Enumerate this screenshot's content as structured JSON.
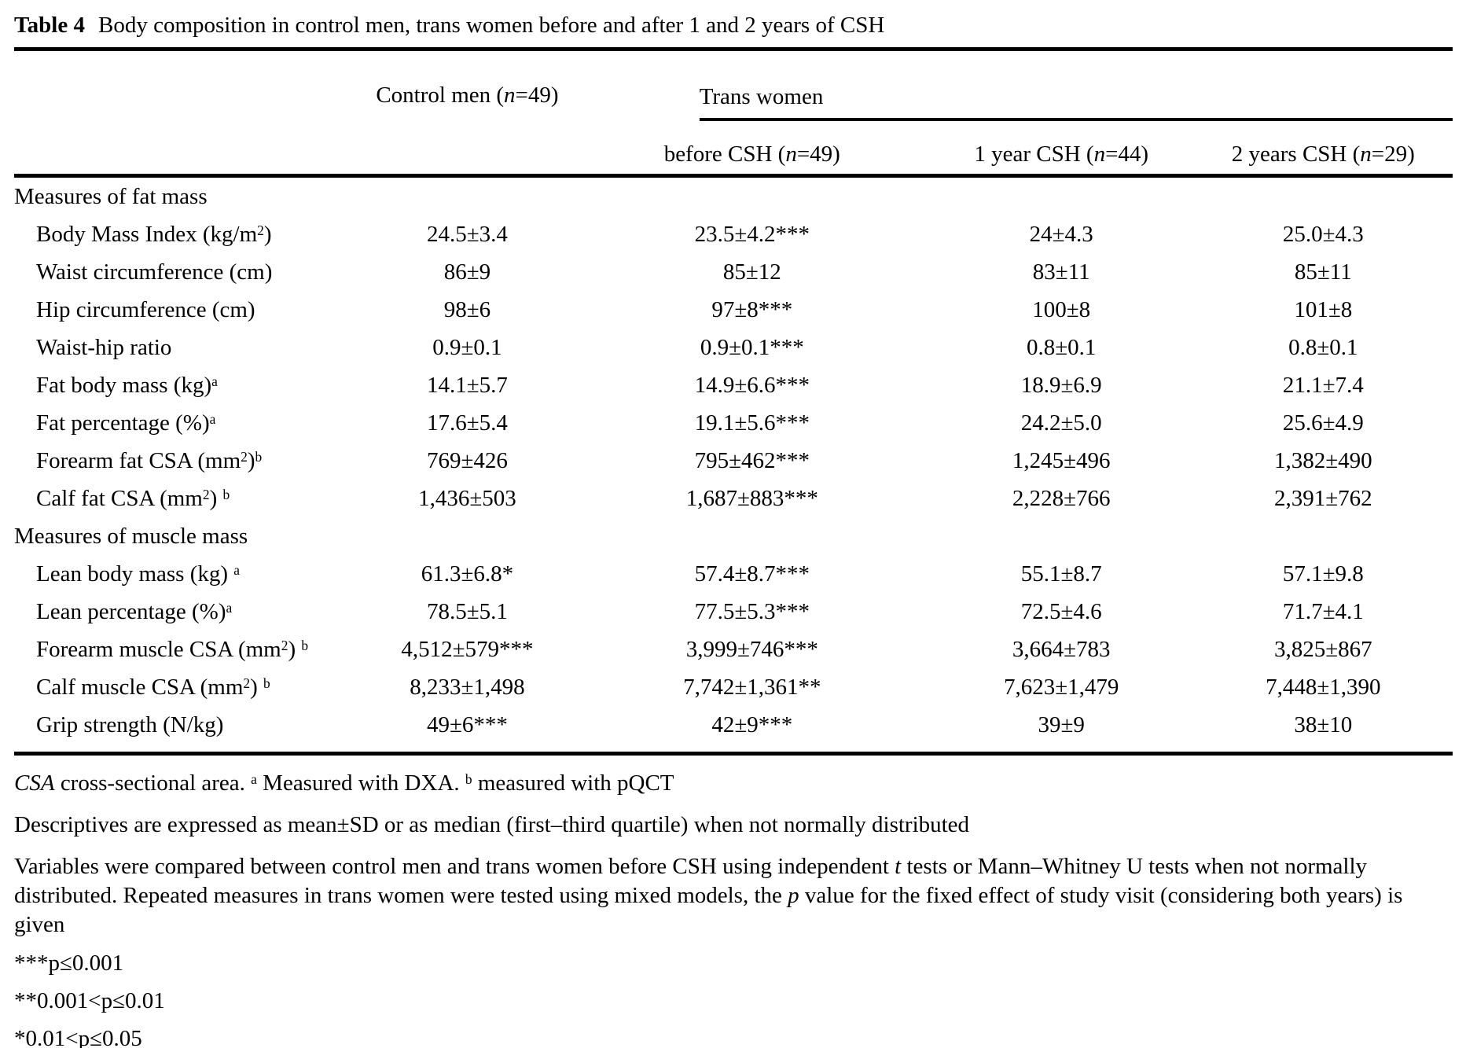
{
  "title": {
    "tag": "Table 4",
    "text": "Body composition in control men, trans women before and after 1 and 2 years of CSH"
  },
  "table": {
    "header": {
      "control": [
        [
          "t",
          "Control men ("
        ],
        [
          "i",
          "n"
        ],
        [
          "t",
          "=49)"
        ]
      ],
      "trans_group": "Trans women",
      "subcols": [
        [
          [
            "t",
            "before CSH ("
          ],
          [
            "i",
            "n"
          ],
          [
            "t",
            "=49)"
          ]
        ],
        [
          [
            "t",
            "1 year CSH ("
          ],
          [
            "i",
            "n"
          ],
          [
            "t",
            "=44)"
          ]
        ],
        [
          [
            "t",
            "2 years CSH ("
          ],
          [
            "i",
            "n"
          ],
          [
            "t",
            "=29)"
          ]
        ]
      ]
    },
    "rows": [
      {
        "section": "Measures of fat mass"
      },
      {
        "label": [
          [
            "t",
            "Body Mass Index (kg/m"
          ],
          [
            "sup",
            "2"
          ],
          [
            "t",
            ")"
          ]
        ],
        "values": [
          "24.5±3.4",
          "23.5±4.2***",
          "24±4.3",
          "25.0±4.3"
        ]
      },
      {
        "label": [
          [
            "t",
            "Waist circumference (cm)"
          ]
        ],
        "values": [
          "86±9",
          "85±12",
          "83±11",
          "85±11"
        ]
      },
      {
        "label": [
          [
            "t",
            "Hip circumference (cm)"
          ]
        ],
        "values": [
          "98±6",
          "97±8***",
          "100±8",
          "101±8"
        ]
      },
      {
        "label": [
          [
            "t",
            "Waist-hip ratio"
          ]
        ],
        "values": [
          "0.9±0.1",
          "0.9±0.1***",
          "0.8±0.1",
          "0.8±0.1"
        ]
      },
      {
        "label": [
          [
            "t",
            "Fat body mass (kg)"
          ],
          [
            "sup",
            "a"
          ]
        ],
        "values": [
          "14.1±5.7",
          "14.9±6.6***",
          "18.9±6.9",
          "21.1±7.4"
        ]
      },
      {
        "label": [
          [
            "t",
            "Fat percentage (%)"
          ],
          [
            "sup",
            "a"
          ]
        ],
        "values": [
          "17.6±5.4",
          "19.1±5.6***",
          "24.2±5.0",
          "25.6±4.9"
        ]
      },
      {
        "label": [
          [
            "t",
            "Forearm fat CSA (mm"
          ],
          [
            "sup",
            "2"
          ],
          [
            "t",
            ")"
          ],
          [
            "sup",
            "b"
          ]
        ],
        "values": [
          "769±426",
          "795±462***",
          "1,245±496",
          "1,382±490"
        ]
      },
      {
        "label": [
          [
            "t",
            "Calf fat CSA (mm"
          ],
          [
            "sup",
            "2"
          ],
          [
            "t",
            ") "
          ],
          [
            "sup",
            "b"
          ]
        ],
        "values": [
          "1,436±503",
          "1,687±883***",
          "2,228±766",
          "2,391±762"
        ]
      },
      {
        "section": "Measures of muscle mass"
      },
      {
        "label": [
          [
            "t",
            "Lean body mass (kg) "
          ],
          [
            "sup",
            "a"
          ]
        ],
        "values": [
          "61.3±6.8*",
          "57.4±8.7***",
          "55.1±8.7",
          "57.1±9.8"
        ]
      },
      {
        "label": [
          [
            "t",
            "Lean percentage (%)"
          ],
          [
            "sup",
            "a"
          ]
        ],
        "values": [
          "78.5±5.1",
          "77.5±5.3***",
          "72.5±4.6",
          "71.7±4.1"
        ]
      },
      {
        "label": [
          [
            "t",
            "Forearm muscle CSA (mm"
          ],
          [
            "sup",
            "2"
          ],
          [
            "t",
            ") "
          ],
          [
            "sup",
            "b"
          ]
        ],
        "values": [
          "4,512±579***",
          "3,999±746***",
          "3,664±783",
          "3,825±867"
        ]
      },
      {
        "label": [
          [
            "t",
            "Calf muscle CSA (mm"
          ],
          [
            "sup",
            "2"
          ],
          [
            "t",
            ") "
          ],
          [
            "sup",
            "b"
          ]
        ],
        "values": [
          "8,233±1,498",
          "7,742±1,361**",
          "7,623±1,479",
          "7,448±1,390"
        ]
      },
      {
        "label": [
          [
            "t",
            "Grip strength (N/kg)"
          ]
        ],
        "values": [
          "49±6***",
          "42±9***",
          "39±9",
          "38±10"
        ]
      }
    ]
  },
  "footnotes": {
    "abbrev": [
      [
        "i",
        "CSA"
      ],
      [
        "t",
        " cross-sectional area. "
      ],
      [
        "sup",
        "a"
      ],
      [
        "t",
        " Measured with DXA. "
      ],
      [
        "sup",
        "b"
      ],
      [
        "t",
        " measured with pQCT"
      ]
    ],
    "descriptives": "Descriptives are expressed as mean±SD or as median (first–third quartile) when not normally distributed",
    "stats": [
      [
        "t",
        "Variables were compared between control men and trans women before CSH using independent "
      ],
      [
        "i",
        "t"
      ],
      [
        "t",
        " tests or Mann–Whitney U tests when not normally distributed. Repeated measures in trans women were tested using mixed models, the "
      ],
      [
        "i",
        "p"
      ],
      [
        "t",
        " value for the fixed effect of study visit (considering both years) is given"
      ]
    ],
    "significance": [
      "***p≤0.001",
      "**0.001<p≤0.01",
      "*0.01<p≤0.05"
    ]
  }
}
